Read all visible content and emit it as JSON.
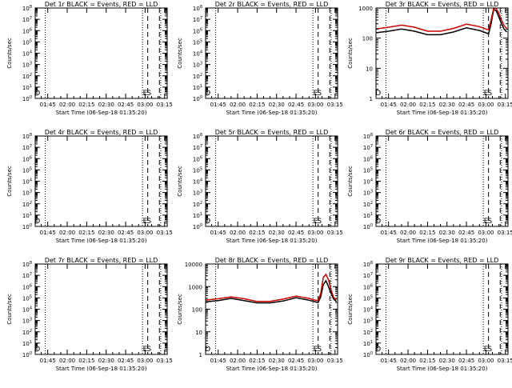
{
  "figure": {
    "xlabel": "Start Time (06-Sep-18 01:35:20)",
    "ylabel": "Counts/sec",
    "x_tick_labels": [
      "01:45",
      "02:00",
      "02:15",
      "02:30",
      "02:45",
      "03:00",
      "03:15"
    ],
    "colors": {
      "events": "#000000",
      "lld": "#cc0000",
      "background": "#ffffff"
    }
  },
  "chart_data": [
    {
      "type": "line",
      "detector": "1r",
      "title": "Det 1r BLACK = Events, RED = LLD",
      "x_range": [
        "01:35:20",
        "03:17"
      ],
      "y_scale": "log",
      "ylim": [
        1,
        100000000.0
      ],
      "ytick_labels": [
        "10^0",
        "10^1",
        "10^2",
        "10^3",
        "10^4",
        "10^5",
        "10^6",
        "10^7",
        "10^8"
      ],
      "ytick_exponents": [
        0,
        1,
        2,
        3,
        4,
        5,
        6,
        7,
        8
      ],
      "dotted_markers": [
        "01:43",
        "02:58",
        "03:12"
      ],
      "dashed_markers": [
        "03:02",
        "03:11"
      ],
      "interval_labels": [
        {
          "text": "D",
          "at": "01:37"
        },
        {
          "text": "E",
          "at": "03:00"
        },
        {
          "text": "S",
          "at": "03:03"
        }
      ],
      "series": []
    },
    {
      "type": "line",
      "detector": "2r",
      "title": "Det 2r BLACK = Events, RED = LLD",
      "x_range": [
        "01:35:20",
        "03:17"
      ],
      "y_scale": "log",
      "ylim": [
        1,
        100000000.0
      ],
      "ytick_labels": [
        "10^0",
        "10^1",
        "10^2",
        "10^3",
        "10^4",
        "10^5",
        "10^6",
        "10^7",
        "10^8"
      ],
      "ytick_exponents": [
        0,
        1,
        2,
        3,
        4,
        5,
        6,
        7,
        8
      ],
      "dotted_markers": [
        "01:43",
        "02:58",
        "03:12"
      ],
      "dashed_markers": [
        "03:02",
        "03:11"
      ],
      "interval_labels": [
        {
          "text": "D",
          "at": "01:37"
        },
        {
          "text": "E",
          "at": "03:00"
        },
        {
          "text": "S",
          "at": "03:03"
        }
      ],
      "series": []
    },
    {
      "type": "line",
      "detector": "3r",
      "title": "Det 3r BLACK = Events, RED = LLD",
      "x_range": [
        "01:35:20",
        "03:17"
      ],
      "y_scale": "log",
      "ylim": [
        1,
        1000
      ],
      "ytick_labels": [
        "1",
        "10",
        "100",
        "1000"
      ],
      "ytick_exponents": [
        0,
        1,
        2,
        3
      ],
      "dotted_markers": [
        "01:43",
        "02:58",
        "03:12"
      ],
      "dashed_markers": [
        "03:02",
        "03:11"
      ],
      "interval_labels": [
        {
          "text": "D",
          "at": "01:37"
        },
        {
          "text": "E",
          "at": "03:00"
        },
        {
          "text": "S",
          "at": "03:03"
        }
      ],
      "series": [
        {
          "name": "Events",
          "color": "#000000",
          "x": [
            "01:35",
            "01:45",
            "01:55",
            "02:05",
            "02:15",
            "02:25",
            "02:35",
            "02:45",
            "02:55",
            "03:00",
            "03:02",
            "03:04",
            "03:06",
            "03:08",
            "03:10",
            "03:12",
            "03:14",
            "03:16"
          ],
          "y": [
            150,
            170,
            200,
            170,
            130,
            130,
            160,
            220,
            180,
            150,
            140,
            300,
            900,
            800,
            500,
            300,
            200,
            160
          ]
        },
        {
          "name": "LLD",
          "color": "#cc0000",
          "x": [
            "01:35",
            "01:45",
            "01:55",
            "02:05",
            "02:15",
            "02:25",
            "02:35",
            "02:45",
            "02:55",
            "03:00",
            "03:02",
            "03:04",
            "03:06",
            "03:08",
            "03:10",
            "03:12",
            "03:14",
            "03:16"
          ],
          "y": [
            200,
            230,
            270,
            230,
            170,
            170,
            210,
            290,
            240,
            200,
            190,
            400,
            1000,
            950,
            650,
            400,
            260,
            210
          ]
        }
      ]
    },
    {
      "type": "line",
      "detector": "4r",
      "title": "Det 4r BLACK = Events, RED = LLD",
      "x_range": [
        "01:35:20",
        "03:17"
      ],
      "y_scale": "log",
      "ylim": [
        1,
        100000000.0
      ],
      "ytick_labels": [
        "10^0",
        "10^1",
        "10^2",
        "10^3",
        "10^4",
        "10^5",
        "10^6",
        "10^7",
        "10^8"
      ],
      "ytick_exponents": [
        0,
        1,
        2,
        3,
        4,
        5,
        6,
        7,
        8
      ],
      "dotted_markers": [
        "01:43",
        "02:58",
        "03:12"
      ],
      "dashed_markers": [
        "03:02",
        "03:11"
      ],
      "interval_labels": [
        {
          "text": "D",
          "at": "01:37"
        },
        {
          "text": "E",
          "at": "03:00"
        },
        {
          "text": "S",
          "at": "03:03"
        }
      ],
      "series": []
    },
    {
      "type": "line",
      "detector": "5r",
      "title": "Det 5r BLACK = Events, RED = LLD",
      "x_range": [
        "01:35:20",
        "03:17"
      ],
      "y_scale": "log",
      "ylim": [
        1,
        100000000.0
      ],
      "ytick_labels": [
        "10^0",
        "10^1",
        "10^2",
        "10^3",
        "10^4",
        "10^5",
        "10^6",
        "10^7",
        "10^8"
      ],
      "ytick_exponents": [
        0,
        1,
        2,
        3,
        4,
        5,
        6,
        7,
        8
      ],
      "dotted_markers": [
        "01:43",
        "02:58",
        "03:12"
      ],
      "dashed_markers": [
        "03:02",
        "03:11"
      ],
      "interval_labels": [
        {
          "text": "D",
          "at": "01:37"
        },
        {
          "text": "E",
          "at": "03:00"
        },
        {
          "text": "S",
          "at": "03:03"
        }
      ],
      "series": []
    },
    {
      "type": "line",
      "detector": "6r",
      "title": "Det 6r BLACK = Events, RED = LLD",
      "x_range": [
        "01:35:20",
        "03:17"
      ],
      "y_scale": "log",
      "ylim": [
        1,
        100000000.0
      ],
      "ytick_labels": [
        "10^0",
        "10^1",
        "10^2",
        "10^3",
        "10^4",
        "10^5",
        "10^6",
        "10^7",
        "10^8"
      ],
      "ytick_exponents": [
        0,
        1,
        2,
        3,
        4,
        5,
        6,
        7,
        8
      ],
      "dotted_markers": [
        "01:43",
        "02:58",
        "03:12"
      ],
      "dashed_markers": [
        "03:02",
        "03:11"
      ],
      "interval_labels": [
        {
          "text": "D",
          "at": "01:37"
        },
        {
          "text": "E",
          "at": "03:00"
        },
        {
          "text": "S",
          "at": "03:03"
        }
      ],
      "series": []
    },
    {
      "type": "line",
      "detector": "7r",
      "title": "Det 7r BLACK = Events, RED = LLD",
      "x_range": [
        "01:35:20",
        "03:17"
      ],
      "y_scale": "log",
      "ylim": [
        1,
        100000000.0
      ],
      "ytick_labels": [
        "10^0",
        "10^1",
        "10^2",
        "10^3",
        "10^4",
        "10^5",
        "10^6",
        "10^7",
        "10^8"
      ],
      "ytick_exponents": [
        0,
        1,
        2,
        3,
        4,
        5,
        6,
        7,
        8
      ],
      "dotted_markers": [
        "01:43",
        "02:58",
        "03:12"
      ],
      "dashed_markers": [
        "03:02",
        "03:11"
      ],
      "interval_labels": [
        {
          "text": "D",
          "at": "01:37"
        },
        {
          "text": "E",
          "at": "03:00"
        },
        {
          "text": "S",
          "at": "03:03"
        }
      ],
      "series": []
    },
    {
      "type": "line",
      "detector": "8r",
      "title": "Det 8r BLACK = Events, RED = LLD",
      "x_range": [
        "01:35:20",
        "03:17"
      ],
      "y_scale": "log",
      "ylim": [
        1,
        10000
      ],
      "ytick_labels": [
        "1",
        "10",
        "100",
        "1000",
        "10000"
      ],
      "ytick_exponents": [
        0,
        1,
        2,
        3,
        4
      ],
      "dotted_markers": [
        "01:43",
        "02:58",
        "03:12"
      ],
      "dashed_markers": [
        "03:02",
        "03:11"
      ],
      "interval_labels": [
        {
          "text": "D",
          "at": "01:37"
        },
        {
          "text": "E",
          "at": "03:00"
        },
        {
          "text": "S",
          "at": "03:03"
        }
      ],
      "series": [
        {
          "name": "Events",
          "color": "#000000",
          "x": [
            "01:35",
            "01:45",
            "01:55",
            "02:05",
            "02:15",
            "02:25",
            "02:35",
            "02:45",
            "02:55",
            "03:00",
            "03:02",
            "03:04",
            "03:06",
            "03:08",
            "03:10",
            "03:12",
            "03:14",
            "03:16"
          ],
          "y": [
            210,
            240,
            300,
            240,
            190,
            190,
            230,
            320,
            250,
            210,
            200,
            350,
            1200,
            1800,
            1000,
            500,
            280,
            220
          ]
        },
        {
          "name": "LLD",
          "color": "#cc0000",
          "x": [
            "01:35",
            "01:45",
            "01:55",
            "02:05",
            "02:15",
            "02:25",
            "02:35",
            "02:45",
            "02:55",
            "03:00",
            "03:02",
            "03:04",
            "03:06",
            "03:08",
            "03:10",
            "03:12",
            "03:14",
            "03:16"
          ],
          "y": [
            250,
            290,
            350,
            290,
            220,
            220,
            280,
            380,
            300,
            250,
            240,
            500,
            2500,
            3500,
            2000,
            700,
            330,
            260
          ]
        }
      ]
    },
    {
      "type": "line",
      "detector": "9r",
      "title": "Det 9r BLACK = Events, RED = LLD",
      "x_range": [
        "01:35:20",
        "03:17"
      ],
      "y_scale": "log",
      "ylim": [
        1,
        100000000.0
      ],
      "ytick_labels": [
        "10^0",
        "10^1",
        "10^2",
        "10^3",
        "10^4",
        "10^5",
        "10^6",
        "10^7",
        "10^8"
      ],
      "ytick_exponents": [
        0,
        1,
        2,
        3,
        4,
        5,
        6,
        7,
        8
      ],
      "dotted_markers": [
        "01:43",
        "02:58",
        "03:12"
      ],
      "dashed_markers": [
        "03:02",
        "03:11"
      ],
      "interval_labels": [
        {
          "text": "D",
          "at": "01:37"
        },
        {
          "text": "E",
          "at": "03:00"
        },
        {
          "text": "S",
          "at": "03:03"
        }
      ],
      "series": []
    }
  ]
}
